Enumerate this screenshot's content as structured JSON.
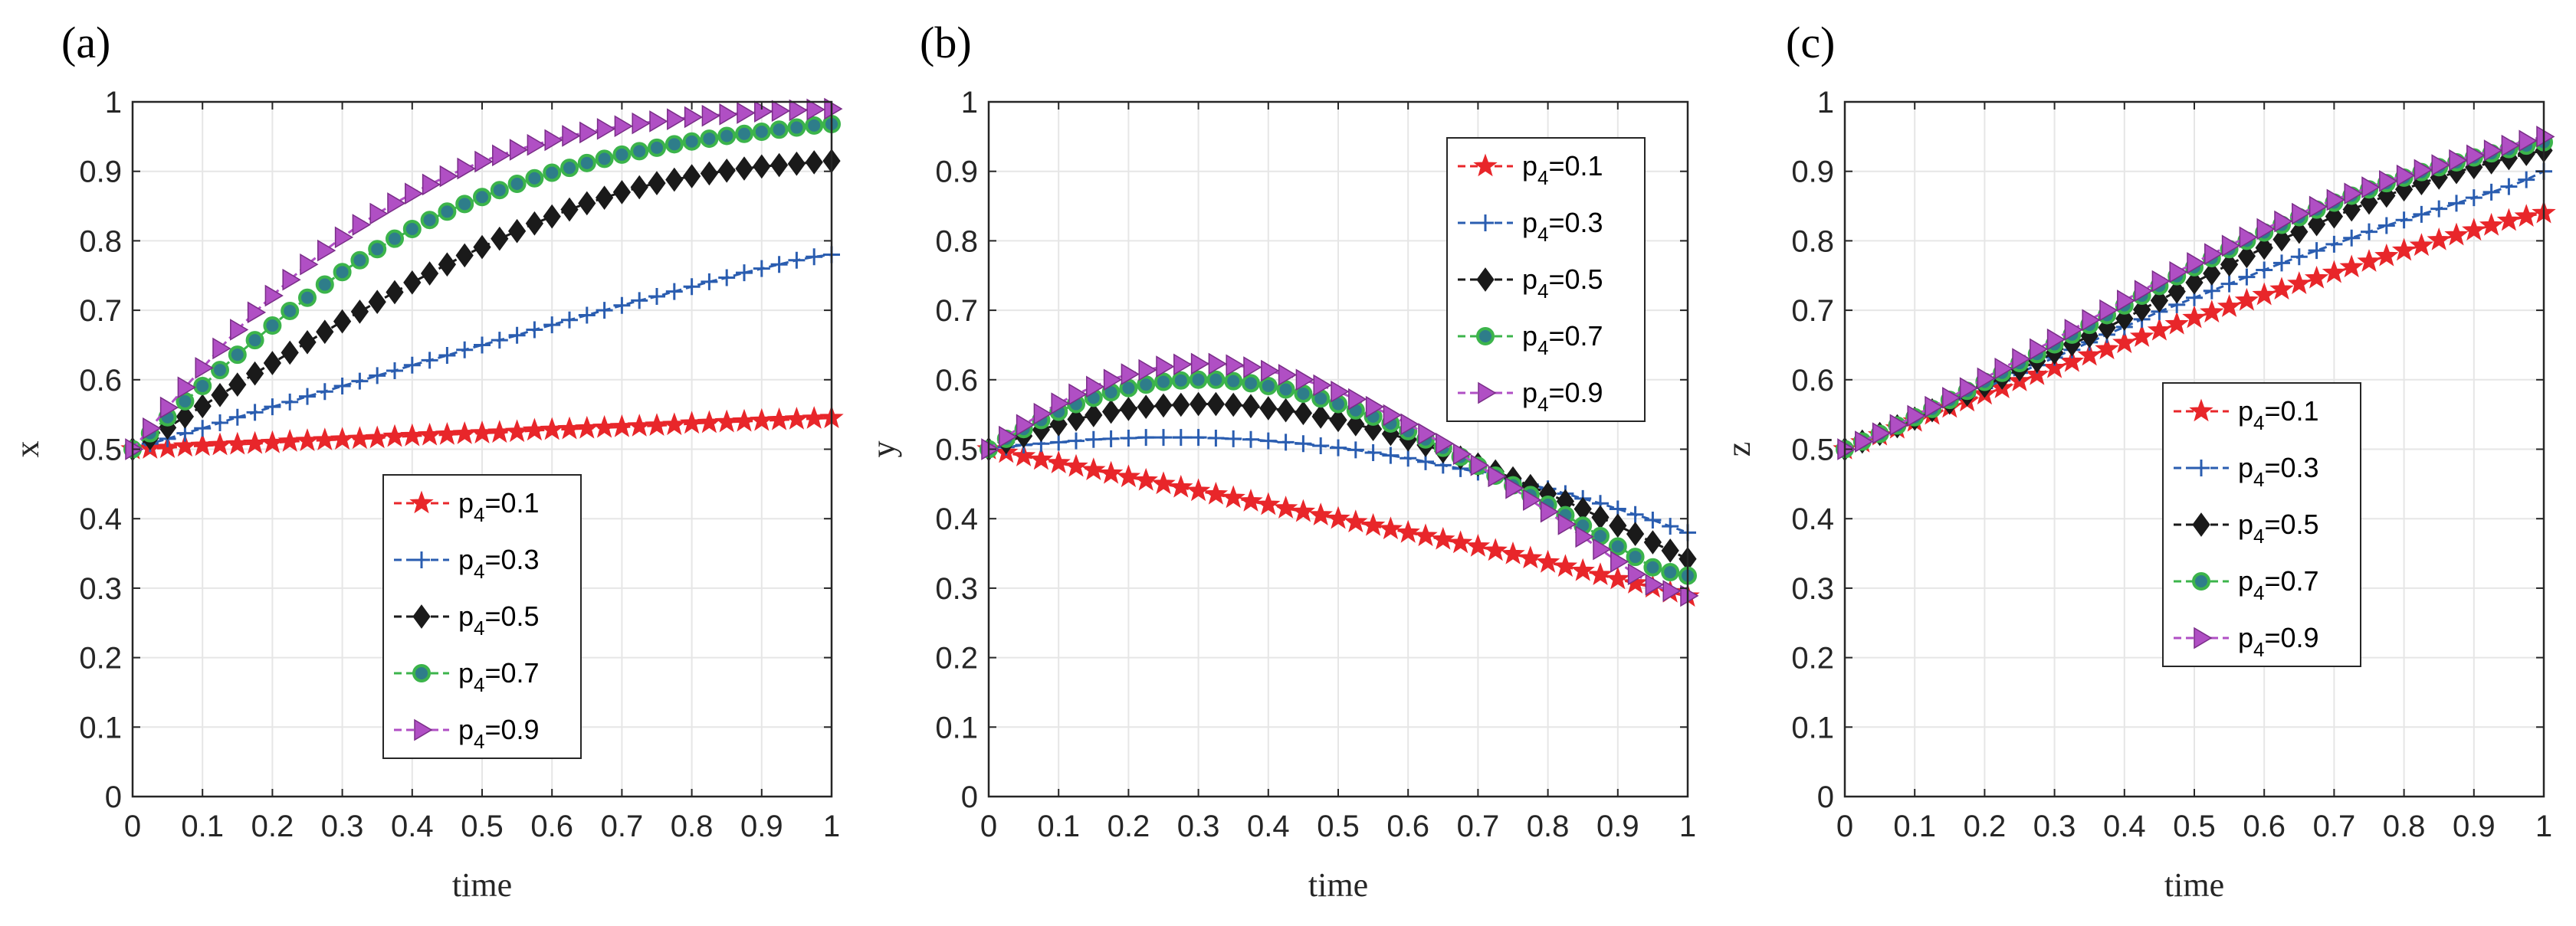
{
  "chart_data": [
    {
      "type": "line",
      "panel_label": "(a)",
      "xlabel": "time",
      "ylabel": "x",
      "xlim": [
        0,
        1
      ],
      "ylim": [
        0,
        1
      ],
      "xticks": [
        "0",
        "0.1",
        "0.2",
        "0.3",
        "0.4",
        "0.5",
        "0.6",
        "0.7",
        "0.8",
        "0.9",
        "1"
      ],
      "yticks": [
        "0",
        "0.1",
        "0.2",
        "0.3",
        "0.4",
        "0.5",
        "0.6",
        "0.7",
        "0.8",
        "0.9",
        "1"
      ],
      "grid": true,
      "legend_position": "lower-center",
      "x": [
        0,
        0.025,
        0.05,
        0.075,
        0.1,
        0.125,
        0.15,
        0.175,
        0.2,
        0.225,
        0.25,
        0.275,
        0.3,
        0.325,
        0.35,
        0.375,
        0.4,
        0.425,
        0.45,
        0.475,
        0.5,
        0.525,
        0.55,
        0.575,
        0.6,
        0.625,
        0.65,
        0.675,
        0.7,
        0.725,
        0.75,
        0.775,
        0.8,
        0.825,
        0.85,
        0.875,
        0.9,
        0.925,
        0.95,
        0.975,
        1
      ],
      "series": [
        {
          "name": "p4=0.1",
          "label_main": "p",
          "label_sub": "4",
          "label_rest": "=0.1",
          "color": "#e8262a",
          "marker": "star",
          "values": [
            0.5,
            0.501,
            0.502,
            0.504,
            0.505,
            0.506,
            0.507,
            0.508,
            0.509,
            0.511,
            0.512,
            0.513,
            0.514,
            0.515,
            0.516,
            0.518,
            0.519,
            0.52,
            0.521,
            0.522,
            0.523,
            0.524,
            0.525,
            0.527,
            0.528,
            0.529,
            0.53,
            0.531,
            0.532,
            0.533,
            0.534,
            0.535,
            0.537,
            0.538,
            0.539,
            0.54,
            0.541,
            0.542,
            0.543,
            0.544,
            0.545
          ]
        },
        {
          "name": "p4=0.3",
          "label_main": "p",
          "label_sub": "4",
          "label_rest": "=0.3",
          "color": "#2a5db0",
          "marker": "plus",
          "values": [
            0.5,
            0.508,
            0.515,
            0.523,
            0.53,
            0.538,
            0.546,
            0.553,
            0.561,
            0.568,
            0.576,
            0.583,
            0.591,
            0.598,
            0.606,
            0.613,
            0.621,
            0.628,
            0.635,
            0.643,
            0.65,
            0.657,
            0.664,
            0.672,
            0.679,
            0.686,
            0.693,
            0.7,
            0.707,
            0.714,
            0.72,
            0.727,
            0.734,
            0.741,
            0.747,
            0.754,
            0.76,
            0.766,
            0.772,
            0.777,
            0.78
          ]
        },
        {
          "name": "p4=0.5",
          "label_main": "p",
          "label_sub": "4",
          "label_rest": "=0.5",
          "color": "#1a1a1a",
          "marker": "diamond",
          "values": [
            0.5,
            0.516,
            0.531,
            0.547,
            0.562,
            0.578,
            0.593,
            0.609,
            0.624,
            0.639,
            0.654,
            0.669,
            0.684,
            0.698,
            0.712,
            0.726,
            0.74,
            0.753,
            0.766,
            0.779,
            0.791,
            0.803,
            0.814,
            0.825,
            0.835,
            0.845,
            0.854,
            0.862,
            0.87,
            0.877,
            0.883,
            0.888,
            0.893,
            0.897,
            0.901,
            0.904,
            0.907,
            0.909,
            0.911,
            0.913,
            0.915
          ]
        },
        {
          "name": "p4=0.7",
          "label_main": "p",
          "label_sub": "4",
          "label_rest": "=0.7",
          "color": "#3cb44b",
          "marker": "circle",
          "values": [
            0.5,
            0.523,
            0.546,
            0.569,
            0.591,
            0.614,
            0.636,
            0.657,
            0.678,
            0.699,
            0.718,
            0.737,
            0.755,
            0.772,
            0.788,
            0.803,
            0.817,
            0.83,
            0.842,
            0.853,
            0.863,
            0.873,
            0.882,
            0.89,
            0.898,
            0.905,
            0.912,
            0.918,
            0.924,
            0.929,
            0.934,
            0.939,
            0.943,
            0.947,
            0.951,
            0.954,
            0.957,
            0.96,
            0.963,
            0.966,
            0.968
          ]
        },
        {
          "name": "p4=0.9",
          "label_main": "p",
          "label_sub": "4",
          "label_rest": "=0.9",
          "color": "#b04fc4",
          "marker": "triangle-right",
          "values": [
            0.5,
            0.53,
            0.56,
            0.589,
            0.617,
            0.645,
            0.672,
            0.697,
            0.721,
            0.744,
            0.766,
            0.786,
            0.805,
            0.823,
            0.839,
            0.854,
            0.868,
            0.881,
            0.893,
            0.904,
            0.914,
            0.923,
            0.931,
            0.938,
            0.945,
            0.951,
            0.956,
            0.961,
            0.965,
            0.969,
            0.972,
            0.975,
            0.978,
            0.98,
            0.982,
            0.984,
            0.986,
            0.987,
            0.988,
            0.989,
            0.99
          ]
        }
      ]
    },
    {
      "type": "line",
      "panel_label": "(b)",
      "xlabel": "time",
      "ylabel": "y",
      "xlim": [
        0,
        1
      ],
      "ylim": [
        0,
        1
      ],
      "xticks": [
        "0",
        "0.1",
        "0.2",
        "0.3",
        "0.4",
        "0.5",
        "0.6",
        "0.7",
        "0.8",
        "0.9",
        "1"
      ],
      "yticks": [
        "0",
        "0.1",
        "0.2",
        "0.3",
        "0.4",
        "0.5",
        "0.6",
        "0.7",
        "0.8",
        "0.9",
        "1"
      ],
      "grid": true,
      "legend_position": "top-right",
      "x": [
        0,
        0.025,
        0.05,
        0.075,
        0.1,
        0.125,
        0.15,
        0.175,
        0.2,
        0.225,
        0.25,
        0.275,
        0.3,
        0.325,
        0.35,
        0.375,
        0.4,
        0.425,
        0.45,
        0.475,
        0.5,
        0.525,
        0.55,
        0.575,
        0.6,
        0.625,
        0.65,
        0.675,
        0.7,
        0.725,
        0.75,
        0.775,
        0.8,
        0.825,
        0.85,
        0.875,
        0.9,
        0.925,
        0.95,
        0.975,
        1
      ],
      "series": [
        {
          "name": "p4=0.1",
          "label_main": "p",
          "label_sub": "4",
          "label_rest": "=0.1",
          "color": "#e8262a",
          "marker": "star",
          "values": [
            0.5,
            0.495,
            0.49,
            0.485,
            0.48,
            0.475,
            0.47,
            0.465,
            0.46,
            0.455,
            0.45,
            0.445,
            0.44,
            0.435,
            0.43,
            0.425,
            0.42,
            0.415,
            0.41,
            0.405,
            0.4,
            0.395,
            0.39,
            0.385,
            0.38,
            0.375,
            0.37,
            0.365,
            0.36,
            0.354,
            0.349,
            0.343,
            0.337,
            0.331,
            0.325,
            0.319,
            0.313,
            0.307,
            0.301,
            0.294,
            0.288
          ]
        },
        {
          "name": "p4=0.3",
          "label_main": "p",
          "label_sub": "4",
          "label_rest": "=0.3",
          "color": "#2a5db0",
          "marker": "plus",
          "values": [
            0.5,
            0.503,
            0.506,
            0.508,
            0.51,
            0.512,
            0.514,
            0.515,
            0.516,
            0.517,
            0.517,
            0.517,
            0.517,
            0.516,
            0.515,
            0.514,
            0.512,
            0.51,
            0.508,
            0.505,
            0.502,
            0.499,
            0.495,
            0.491,
            0.487,
            0.482,
            0.477,
            0.472,
            0.467,
            0.461,
            0.455,
            0.449,
            0.443,
            0.436,
            0.429,
            0.422,
            0.414,
            0.406,
            0.398,
            0.389,
            0.38
          ]
        },
        {
          "name": "p4=0.5",
          "label_main": "p",
          "label_sub": "4",
          "label_rest": "=0.5",
          "color": "#1a1a1a",
          "marker": "diamond",
          "values": [
            0.5,
            0.51,
            0.519,
            0.528,
            0.536,
            0.543,
            0.549,
            0.554,
            0.558,
            0.561,
            0.563,
            0.564,
            0.565,
            0.565,
            0.564,
            0.562,
            0.559,
            0.556,
            0.552,
            0.547,
            0.542,
            0.536,
            0.529,
            0.522,
            0.514,
            0.506,
            0.497,
            0.488,
            0.478,
            0.468,
            0.458,
            0.447,
            0.436,
            0.425,
            0.414,
            0.402,
            0.39,
            0.378,
            0.366,
            0.354,
            0.342
          ]
        },
        {
          "name": "p4=0.7",
          "label_main": "p",
          "label_sub": "4",
          "label_rest": "=0.7",
          "color": "#3cb44b",
          "marker": "circle",
          "values": [
            0.5,
            0.515,
            0.529,
            0.542,
            0.554,
            0.565,
            0.574,
            0.582,
            0.588,
            0.593,
            0.597,
            0.599,
            0.6,
            0.6,
            0.598,
            0.595,
            0.591,
            0.586,
            0.58,
            0.573,
            0.565,
            0.556,
            0.547,
            0.537,
            0.526,
            0.514,
            0.502,
            0.489,
            0.476,
            0.462,
            0.448,
            0.434,
            0.42,
            0.405,
            0.39,
            0.375,
            0.36,
            0.345,
            0.33,
            0.323,
            0.318
          ]
        },
        {
          "name": "p4=0.9",
          "label_main": "p",
          "label_sub": "4",
          "label_rest": "=0.9",
          "color": "#b04fc4",
          "marker": "triangle-right",
          "values": [
            0.5,
            0.518,
            0.535,
            0.551,
            0.566,
            0.579,
            0.59,
            0.6,
            0.608,
            0.614,
            0.619,
            0.622,
            0.623,
            0.623,
            0.621,
            0.618,
            0.613,
            0.607,
            0.6,
            0.592,
            0.583,
            0.572,
            0.561,
            0.549,
            0.536,
            0.522,
            0.508,
            0.493,
            0.477,
            0.461,
            0.444,
            0.427,
            0.41,
            0.392,
            0.374,
            0.356,
            0.338,
            0.32,
            0.305,
            0.296,
            0.289
          ]
        }
      ]
    },
    {
      "type": "line",
      "panel_label": "(c)",
      "xlabel": "time",
      "ylabel": "z",
      "xlim": [
        0,
        1
      ],
      "ylim": [
        0,
        1
      ],
      "xticks": [
        "0",
        "0.1",
        "0.2",
        "0.3",
        "0.4",
        "0.5",
        "0.6",
        "0.7",
        "0.8",
        "0.9",
        "1"
      ],
      "yticks": [
        "0",
        "0.1",
        "0.2",
        "0.3",
        "0.4",
        "0.5",
        "0.6",
        "0.7",
        "0.8",
        "0.9",
        "1"
      ],
      "grid": true,
      "legend_position": "middle-center",
      "x": [
        0,
        0.025,
        0.05,
        0.075,
        0.1,
        0.125,
        0.15,
        0.175,
        0.2,
        0.225,
        0.25,
        0.275,
        0.3,
        0.325,
        0.35,
        0.375,
        0.4,
        0.425,
        0.45,
        0.475,
        0.5,
        0.525,
        0.55,
        0.575,
        0.6,
        0.625,
        0.65,
        0.675,
        0.7,
        0.725,
        0.75,
        0.775,
        0.8,
        0.825,
        0.85,
        0.875,
        0.9,
        0.925,
        0.95,
        0.975,
        1
      ],
      "series": [
        {
          "name": "p4=0.1",
          "label_main": "p",
          "label_sub": "4",
          "label_rest": "=0.1",
          "color": "#e8262a",
          "marker": "star",
          "values": [
            0.5,
            0.51,
            0.52,
            0.53,
            0.54,
            0.55,
            0.56,
            0.569,
            0.579,
            0.588,
            0.598,
            0.607,
            0.617,
            0.626,
            0.635,
            0.644,
            0.653,
            0.662,
            0.671,
            0.68,
            0.689,
            0.697,
            0.705,
            0.714,
            0.722,
            0.73,
            0.738,
            0.746,
            0.754,
            0.762,
            0.77,
            0.778,
            0.786,
            0.793,
            0.801,
            0.808,
            0.815,
            0.822,
            0.829,
            0.835,
            0.84
          ]
        },
        {
          "name": "p4=0.3",
          "label_main": "p",
          "label_sub": "4",
          "label_rest": "=0.3",
          "color": "#2a5db0",
          "marker": "plus",
          "values": [
            0.5,
            0.511,
            0.522,
            0.533,
            0.544,
            0.555,
            0.566,
            0.577,
            0.588,
            0.599,
            0.61,
            0.621,
            0.632,
            0.643,
            0.654,
            0.665,
            0.676,
            0.687,
            0.698,
            0.708,
            0.718,
            0.728,
            0.738,
            0.748,
            0.758,
            0.768,
            0.777,
            0.786,
            0.795,
            0.804,
            0.813,
            0.822,
            0.83,
            0.838,
            0.846,
            0.854,
            0.862,
            0.87,
            0.878,
            0.888,
            0.9
          ]
        },
        {
          "name": "p4=0.5",
          "label_main": "p",
          "label_sub": "4",
          "label_rest": "=0.5",
          "color": "#1a1a1a",
          "marker": "diamond",
          "values": [
            0.5,
            0.511,
            0.522,
            0.533,
            0.544,
            0.556,
            0.567,
            0.579,
            0.591,
            0.603,
            0.615,
            0.627,
            0.639,
            0.651,
            0.663,
            0.675,
            0.688,
            0.701,
            0.714,
            0.727,
            0.74,
            0.753,
            0.766,
            0.778,
            0.79,
            0.802,
            0.813,
            0.824,
            0.835,
            0.845,
            0.855,
            0.865,
            0.874,
            0.883,
            0.891,
            0.899,
            0.906,
            0.913,
            0.919,
            0.925,
            0.93
          ]
        },
        {
          "name": "p4=0.7",
          "label_main": "p",
          "label_sub": "4",
          "label_rest": "=0.7",
          "color": "#3cb44b",
          "marker": "circle",
          "values": [
            0.5,
            0.511,
            0.522,
            0.534,
            0.546,
            0.558,
            0.571,
            0.584,
            0.597,
            0.61,
            0.624,
            0.637,
            0.651,
            0.665,
            0.679,
            0.693,
            0.707,
            0.721,
            0.735,
            0.749,
            0.762,
            0.775,
            0.788,
            0.8,
            0.812,
            0.823,
            0.834,
            0.845,
            0.855,
            0.865,
            0.874,
            0.883,
            0.891,
            0.899,
            0.906,
            0.913,
            0.92,
            0.926,
            0.932,
            0.937,
            0.942
          ]
        },
        {
          "name": "p4=0.9",
          "label_main": "p",
          "label_sub": "4",
          "label_rest": "=0.9",
          "color": "#b04fc4",
          "marker": "triangle-right",
          "values": [
            0.5,
            0.511,
            0.523,
            0.535,
            0.548,
            0.561,
            0.574,
            0.588,
            0.602,
            0.616,
            0.63,
            0.644,
            0.658,
            0.672,
            0.686,
            0.7,
            0.714,
            0.728,
            0.742,
            0.755,
            0.768,
            0.781,
            0.793,
            0.805,
            0.817,
            0.828,
            0.839,
            0.849,
            0.859,
            0.868,
            0.877,
            0.886,
            0.894,
            0.902,
            0.909,
            0.916,
            0.923,
            0.93,
            0.937,
            0.944,
            0.95
          ]
        }
      ]
    }
  ]
}
